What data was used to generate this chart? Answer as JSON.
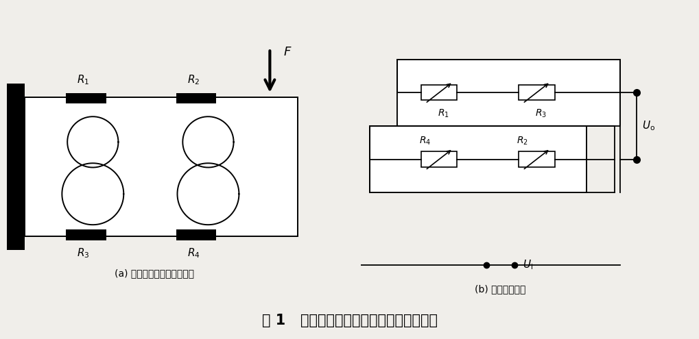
{
  "fig_width": 10.2,
  "fig_height": 4.95,
  "bg_color": "#f0eeea",
  "title": "图 1   双孔梁应变贴片受力及全桥测量电路",
  "caption_a": "(a) 双孔梁应变贴片受力电路",
  "caption_b": "(b) 全桥测量电路",
  "line_color": "#000000"
}
